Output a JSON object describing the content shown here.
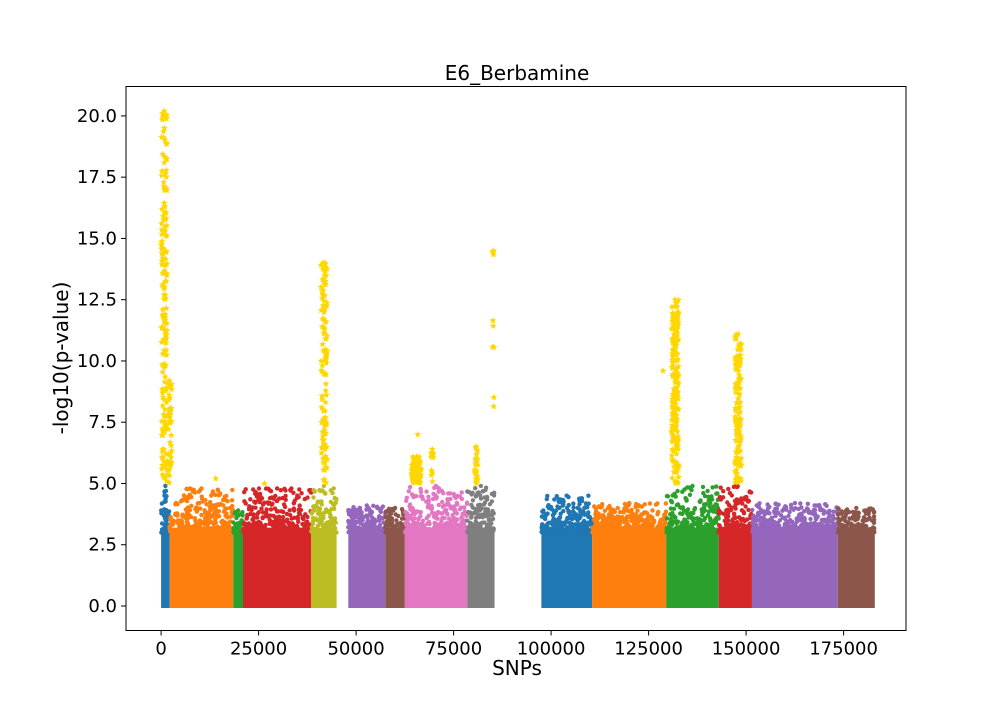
{
  "chart_data": {
    "type": "scatter",
    "title": "E6_Berbamine",
    "xlabel": "SNPs",
    "ylabel": "-log10(p-value)",
    "xlim": [
      -9000,
      191000
    ],
    "ylim": [
      -1.0,
      21.2
    ],
    "xticks": [
      0,
      25000,
      50000,
      75000,
      100000,
      125000,
      150000,
      175000
    ],
    "yticks": [
      0.0,
      2.5,
      5.0,
      7.5,
      10.0,
      12.5,
      15.0,
      17.5,
      20.0
    ],
    "xtick_labels": [
      "0",
      "25000",
      "50000",
      "75000",
      "100000",
      "125000",
      "150000",
      "175000"
    ],
    "ytick_labels": [
      "0.0",
      "2.5",
      "5.0",
      "7.5",
      "10.0",
      "12.5",
      "15.0",
      "17.5",
      "20.0"
    ],
    "significance_threshold": 5.0,
    "highlight_color": "#ffd700",
    "grid": false,
    "chromosomes": [
      {
        "chr": 1,
        "start": 0,
        "end": 2200,
        "color": "#1f77b4",
        "max_bg": 4.9
      },
      {
        "chr": 2,
        "start": 2200,
        "end": 18500,
        "color": "#ff7f0e",
        "max_bg": 4.8
      },
      {
        "chr": 3,
        "start": 18500,
        "end": 21000,
        "color": "#2ca02c",
        "max_bg": 3.9
      },
      {
        "chr": 4,
        "start": 21000,
        "end": 38500,
        "color": "#d62728",
        "max_bg": 4.8
      },
      {
        "chr": 5,
        "start": 38500,
        "end": 45000,
        "color": "#bcbd22",
        "max_bg": 4.9
      },
      {
        "chr": 6,
        "start": 48000,
        "end": 57500,
        "color": "#9467bd",
        "max_bg": 4.1
      },
      {
        "chr": 7,
        "start": 57500,
        "end": 62500,
        "color": "#8c564b",
        "max_bg": 4.0
      },
      {
        "chr": 8,
        "start": 62500,
        "end": 78500,
        "color": "#e377c2",
        "max_bg": 4.9
      },
      {
        "chr": 9,
        "start": 78500,
        "end": 85500,
        "color": "#7f7f7f",
        "max_bg": 4.9
      },
      {
        "chr": 10,
        "start": 97500,
        "end": 110500,
        "color": "#1f77b4",
        "max_bg": 4.5
      },
      {
        "chr": 11,
        "start": 110500,
        "end": 129500,
        "color": "#ff7f0e",
        "max_bg": 4.2
      },
      {
        "chr": 12,
        "start": 129500,
        "end": 143000,
        "color": "#2ca02c",
        "max_bg": 4.9
      },
      {
        "chr": 13,
        "start": 143000,
        "end": 151500,
        "color": "#d62728",
        "max_bg": 4.9
      },
      {
        "chr": 14,
        "start": 151500,
        "end": 173500,
        "color": "#9467bd",
        "max_bg": 4.2
      },
      {
        "chr": 15,
        "start": 173500,
        "end": 183000,
        "color": "#8c564b",
        "max_bg": 4.0
      }
    ],
    "significant_peaks": [
      {
        "x_center": 800,
        "x_width": 1400,
        "max_y": 20.2,
        "n": 170
      },
      {
        "x_center": 2100,
        "x_width": 1200,
        "max_y": 9.2,
        "n": 45
      },
      {
        "x_center": 14000,
        "x_width": 200,
        "max_y": 5.2,
        "n": 1
      },
      {
        "x_center": 26500,
        "x_width": 200,
        "max_y": 5.0,
        "n": 1
      },
      {
        "x_center": 41800,
        "x_width": 1600,
        "max_y": 14.0,
        "n": 110
      },
      {
        "x_center": 65500,
        "x_width": 2400,
        "max_y": 6.1,
        "n": 90
      },
      {
        "x_center": 65800,
        "x_width": 200,
        "max_y": 7.0,
        "n": 2
      },
      {
        "x_center": 69500,
        "x_width": 600,
        "max_y": 6.4,
        "n": 12
      },
      {
        "x_center": 80800,
        "x_width": 800,
        "max_y": 6.5,
        "n": 25
      },
      {
        "x_center": 85200,
        "x_width": 400,
        "max_y": 14.5,
        "n": 10
      },
      {
        "x_center": 128700,
        "x_width": 200,
        "max_y": 9.6,
        "n": 1
      },
      {
        "x_center": 131800,
        "x_width": 1800,
        "max_y": 12.5,
        "n": 190
      },
      {
        "x_center": 148000,
        "x_width": 1600,
        "max_y": 11.1,
        "n": 140
      }
    ]
  }
}
